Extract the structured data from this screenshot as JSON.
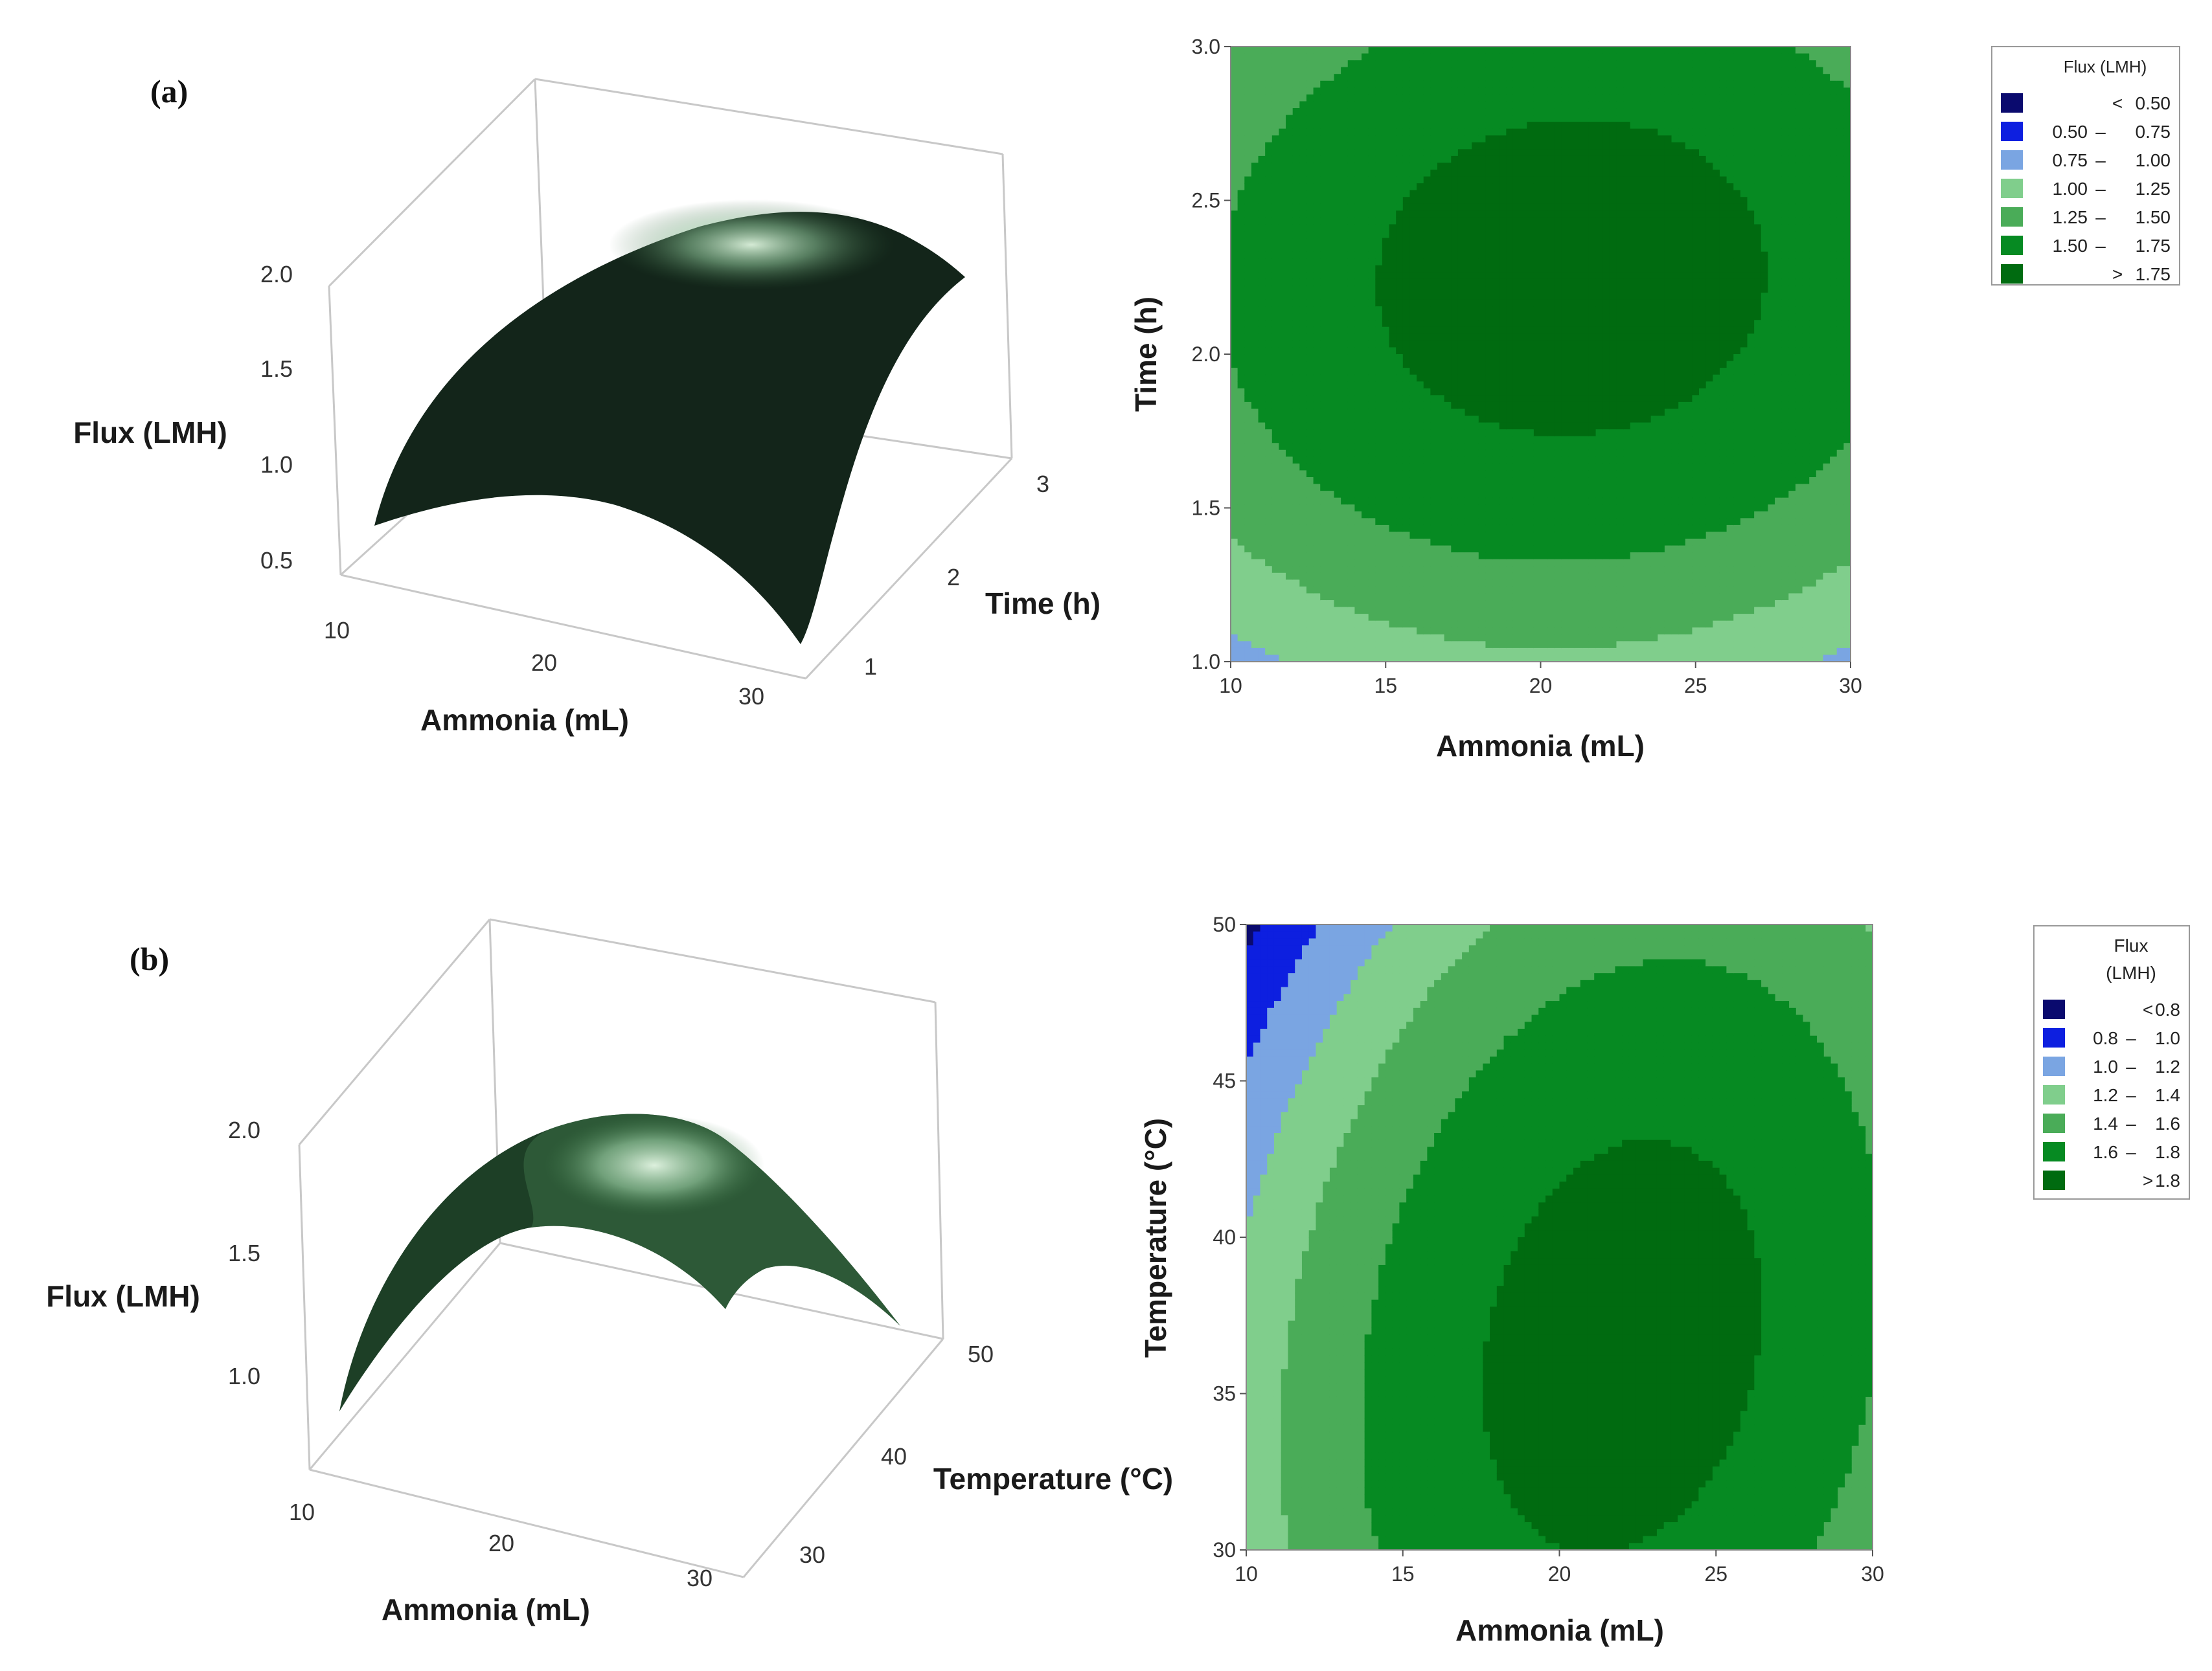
{
  "chart_data": [
    {
      "type": "surface",
      "panel": "(a)",
      "zlabel": "Flux (LMH)",
      "xlabel": "Ammonia (mL)",
      "ylabel": "Time (h)",
      "x_ticks": [
        "10",
        "20",
        "30"
      ],
      "y_ticks": [
        "1",
        "2",
        "3"
      ],
      "z_ticks": [
        "0.5",
        "1.0",
        "1.5",
        "2.0"
      ],
      "xlim": [
        10,
        30
      ],
      "ylim": [
        1,
        3
      ],
      "zlim": [
        0.3,
        2.1
      ],
      "model": {
        "x0": 21,
        "y0": 2.25,
        "peak": 1.86,
        "ax": 0.0028,
        "ay": 0.42
      }
    },
    {
      "type": "contour",
      "panel": "(a)",
      "xlabel": "Ammonia (mL)",
      "ylabel": "Time (h)",
      "x_ticks": [
        "10",
        "15",
        "20",
        "25",
        "30"
      ],
      "y_ticks": [
        "1.0",
        "1.5",
        "2.0",
        "2.5",
        "3.0"
      ],
      "xlim": [
        10,
        30
      ],
      "ylim": [
        1,
        3
      ],
      "model": {
        "x0": 21,
        "y0": 2.25,
        "peak": 1.86,
        "ax": 0.0028,
        "ay": 0.42,
        "axy": -0.003
      },
      "legend_title": [
        "Flux (LMH)"
      ],
      "levels": [
        0.5,
        0.75,
        1.0,
        1.25,
        1.5,
        1.75
      ],
      "legend": [
        {
          "lo": "",
          "sep": "<",
          "hi": "0.50",
          "color": "#0a0a6e"
        },
        {
          "lo": "0.50",
          "sep": "–",
          "hi": "0.75",
          "color": "#0d1fe0"
        },
        {
          "lo": "0.75",
          "sep": "–",
          "hi": "1.00",
          "color": "#7aa5e2"
        },
        {
          "lo": "1.00",
          "sep": "–",
          "hi": "1.25",
          "color": "#80ce8c"
        },
        {
          "lo": "1.25",
          "sep": "–",
          "hi": "1.50",
          "color": "#4aac58"
        },
        {
          "lo": "1.50",
          "sep": "–",
          "hi": "1.75",
          "color": "#068a22"
        },
        {
          "lo": "",
          "sep": ">",
          "hi": "1.75",
          "color": "#006b10"
        }
      ]
    },
    {
      "type": "surface",
      "panel": "(b)",
      "zlabel": "Flux (LMH)",
      "xlabel": "Ammonia (mL)",
      "ylabel": "Temperature (°C)",
      "x_ticks": [
        "10",
        "20",
        "30"
      ],
      "y_ticks": [
        "30",
        "40",
        "50"
      ],
      "z_ticks": [
        "1.0",
        "1.5",
        "2.0"
      ],
      "xlim": [
        10,
        30
      ],
      "ylim": [
        30,
        50
      ],
      "zlim": [
        0.75,
        2.15
      ],
      "model": {
        "x0": 22,
        "y0": 36.5,
        "peak": 1.88,
        "ax": 0.0042,
        "ay": 0.0019,
        "axy": -0.0011
      }
    },
    {
      "type": "contour",
      "panel": "(b)",
      "xlabel": "Ammonia (mL)",
      "ylabel": "Temperature (°C)",
      "x_ticks": [
        "10",
        "15",
        "20",
        "25",
        "30"
      ],
      "y_ticks": [
        "30",
        "35",
        "40",
        "45",
        "50"
      ],
      "xlim": [
        10,
        30
      ],
      "ylim": [
        30,
        50
      ],
      "model": {
        "x0": 22,
        "y0": 36.5,
        "peak": 1.88,
        "ax": 0.0042,
        "ay": 0.0019,
        "axy": -0.0011
      },
      "legend_title": [
        "Flux",
        "(LMH)"
      ],
      "levels": [
        0.8,
        1.0,
        1.2,
        1.4,
        1.6,
        1.8
      ],
      "legend": [
        {
          "lo": "",
          "sep": "<",
          "hi": "0.8",
          "color": "#0a0a6e"
        },
        {
          "lo": "0.8",
          "sep": "–",
          "hi": "1.0",
          "color": "#0d1fe0"
        },
        {
          "lo": "1.0",
          "sep": "–",
          "hi": "1.2",
          "color": "#7aa5e2"
        },
        {
          "lo": "1.2",
          "sep": "–",
          "hi": "1.4",
          "color": "#80ce8c"
        },
        {
          "lo": "1.4",
          "sep": "–",
          "hi": "1.6",
          "color": "#4aac58"
        },
        {
          "lo": "1.6",
          "sep": "–",
          "hi": "1.8",
          "color": "#068a22"
        },
        {
          "lo": "",
          "sep": ">",
          "hi": "1.8",
          "color": "#006b10"
        }
      ]
    }
  ]
}
